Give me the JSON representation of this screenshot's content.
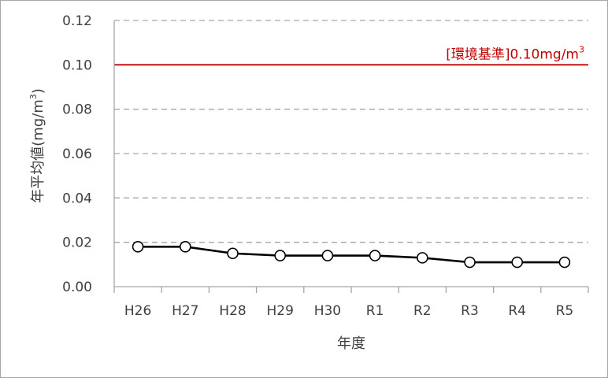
{
  "chart_data": {
    "type": "line",
    "title": "",
    "xlabel": "年度",
    "ylabel": "年平均値(mg/m3)",
    "ylabel_prefix": "年平均値(mg/m",
    "ylabel_sup": "3",
    "ylabel_suffix": ")",
    "categories": [
      "H26",
      "H27",
      "H28",
      "H29",
      "H30",
      "R1",
      "R2",
      "R3",
      "R4",
      "R5"
    ],
    "series": [
      {
        "values": [
          0.018,
          0.018,
          0.015,
          0.014,
          0.014,
          0.014,
          0.013,
          0.011,
          0.011,
          0.011
        ],
        "color": "#000000",
        "marker": "open-circle"
      }
    ],
    "ylim": [
      0,
      0.12
    ],
    "yticks": [
      "0.00",
      "0.02",
      "0.04",
      "0.06",
      "0.08",
      "0.10",
      "0.12"
    ],
    "grid": "horizontal-dashed",
    "reference_line": {
      "value": 0.1,
      "color": "#c00000",
      "label": "[環境基準]0.10mg/m3",
      "label_prefix": "[環境基準]0.10mg/m",
      "label_sup": "3"
    },
    "legend": "none"
  }
}
